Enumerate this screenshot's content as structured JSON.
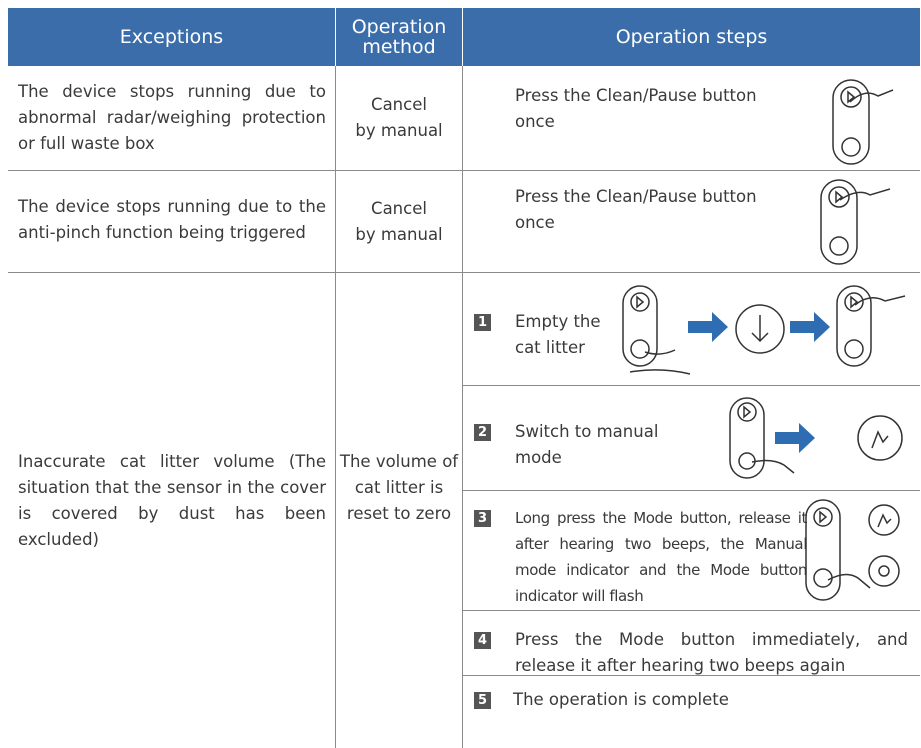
{
  "header": {
    "exceptions": "Exceptions",
    "method": [
      "Operation",
      "method"
    ],
    "steps": "Operation steps"
  },
  "rows": [
    {
      "exception": "The device stops running due to abnormal radar/weighing protection or full waste box",
      "method": [
        "Cancel",
        "by manual"
      ],
      "steps": [
        {
          "text": "Press the Clean/Pause button once"
        }
      ]
    },
    {
      "exception": "The device stops running due to the anti-pinch function being triggered",
      "method": [
        "Cancel",
        "by manual"
      ],
      "steps": [
        {
          "text": "Press the Clean/Pause button once"
        }
      ]
    },
    {
      "exception": "Inaccurate cat litter volume (The situation that the sensor in the cover is covered by dust has been excluded)",
      "method": [
        "The volume of",
        "cat litter is",
        "reset to zero"
      ],
      "steps": [
        {
          "number": "1",
          "text": "Empty the cat litter"
        },
        {
          "number": "2",
          "text": "Switch to manual mode"
        },
        {
          "number": "3",
          "text": "Long press the Mode button, release it after hearing two beeps, the Manual mode indicator and the Mode button indicator will flash"
        },
        {
          "number": "4",
          "text": "Press the  Mode button immediately, and release it after hearing two beeps again"
        },
        {
          "number": "5",
          "text": "The operation is complete"
        }
      ]
    }
  ]
}
